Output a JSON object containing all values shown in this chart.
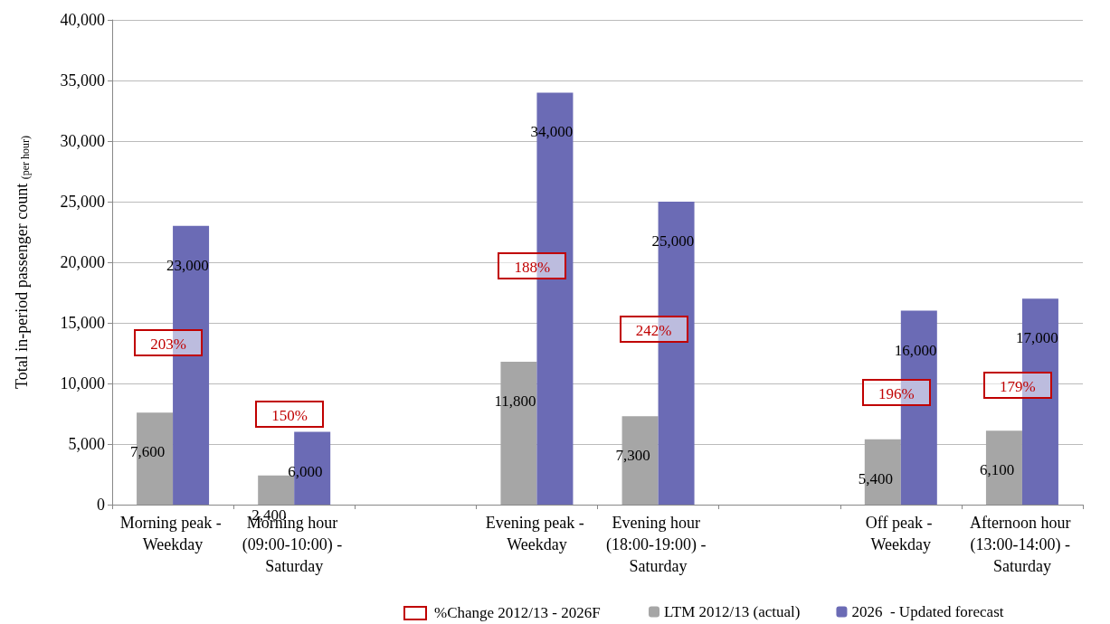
{
  "chart_data": {
    "type": "bar",
    "ylabel": "Total in-period passenger count $_{(per hour)}$",
    "categories": [
      "Morning peak - Weekday",
      "Morning hour (09:00-10:00) - Saturday",
      null,
      "Evening peak - Weekday",
      "Evening hour (18:00-19:00) - Saturday",
      null,
      "Off peak - Weekday",
      "Afternoon hour (13:00-14:00) - Saturday"
    ],
    "series": [
      {
        "name": "LTM 2012/13 (actual)",
        "color": "#a6a6a6",
        "values": [
          7600,
          2400,
          null,
          11800,
          7300,
          null,
          5400,
          6100
        ],
        "value_labels": [
          "7,600",
          "2,400",
          null,
          "11,800",
          "7,300",
          null,
          "5,400",
          "6,100"
        ]
      },
      {
        "name": "2026  - Updated forecast",
        "color": "#6b6bb5",
        "values": [
          23000,
          6000,
          null,
          34000,
          25000,
          null,
          16000,
          17000
        ],
        "value_labels": [
          "23,000",
          "6,000",
          null,
          "34,000",
          "25,000",
          null,
          "16,000",
          "17,000"
        ]
      }
    ],
    "annotations": [
      "%Change 2012/13 - 2026F",
      "203%",
      "150%",
      "188%",
      "242%",
      "196%",
      "179%"
    ],
    "ylim": [
      0,
      40000
    ],
    "yticks": [
      0,
      {
        "value": 5000,
        "label": "5,000"
      },
      {
        "value": 10000,
        "label": "10,000"
      },
      {
        "value": 15000,
        "label": "15,000"
      },
      {
        "value": 20000,
        "label": "20,000"
      },
      {
        "value": 25000,
        "label": "25,000"
      },
      {
        "value": 30000,
        "label": "30,000"
      },
      {
        "value": 35000,
        "label": "35,000"
      },
      {
        "value": 40000,
        "label": "40,000"
      }
    ],
    "grid": "y",
    "legend": "bottom"
  }
}
